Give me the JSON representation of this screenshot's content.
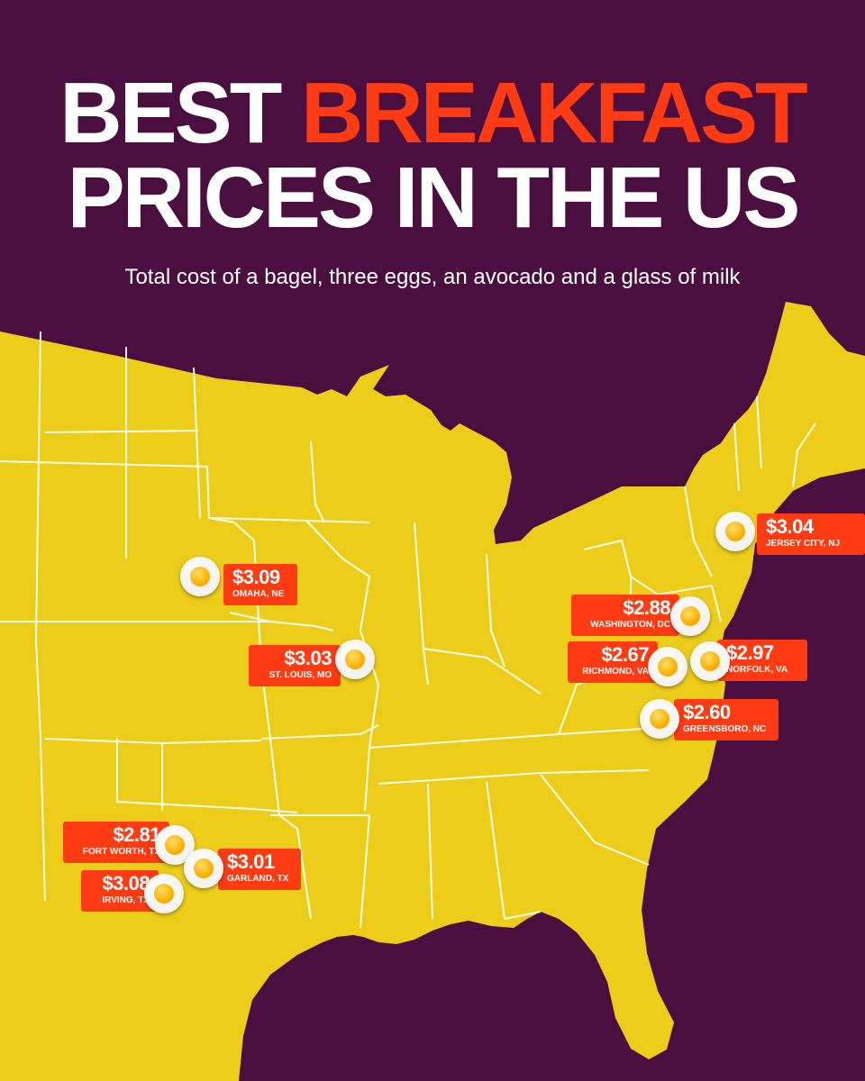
{
  "title": {
    "line1_part1": "BEST",
    "line1_part2": "BREAKFAST",
    "line2": "PRICES IN THE US"
  },
  "subtitle": "Total cost of a bagel, three eggs, an avocado and a glass of milk",
  "colors": {
    "background": "#4b0f3f",
    "map_land": "#eccd1a",
    "state_border": "#ffffff",
    "accent": "#ff3b14",
    "label_text": "#ffffff"
  },
  "markers_icon": "fried-egg-icon",
  "markers": [
    {
      "id": "omaha-ne",
      "price": "$3.09",
      "city": "OMAHA, NE"
    },
    {
      "id": "st-louis-mo",
      "price": "$3.03",
      "city": "ST. LOUIS, MO"
    },
    {
      "id": "jersey-city-nj",
      "price": "$3.04",
      "city": "JERSEY CITY, NJ"
    },
    {
      "id": "washington-dc",
      "price": "$2.88",
      "city": "WASHINGTON, DC"
    },
    {
      "id": "richmond-va",
      "price": "$2.67",
      "city": "RICHMOND, VA"
    },
    {
      "id": "norfolk-va",
      "price": "$2.97",
      "city": "NORFOLK, VA"
    },
    {
      "id": "greensboro-nc",
      "price": "$2.60",
      "city": "GREENSBORO, NC"
    },
    {
      "id": "fort-worth-tx",
      "price": "$2.81",
      "city": "FORT WORTH, TX"
    },
    {
      "id": "garland-tx",
      "price": "$3.01",
      "city": "GARLAND, TX"
    },
    {
      "id": "irving-tx",
      "price": "$3.08",
      "city": "IRVING, TX"
    }
  ]
}
